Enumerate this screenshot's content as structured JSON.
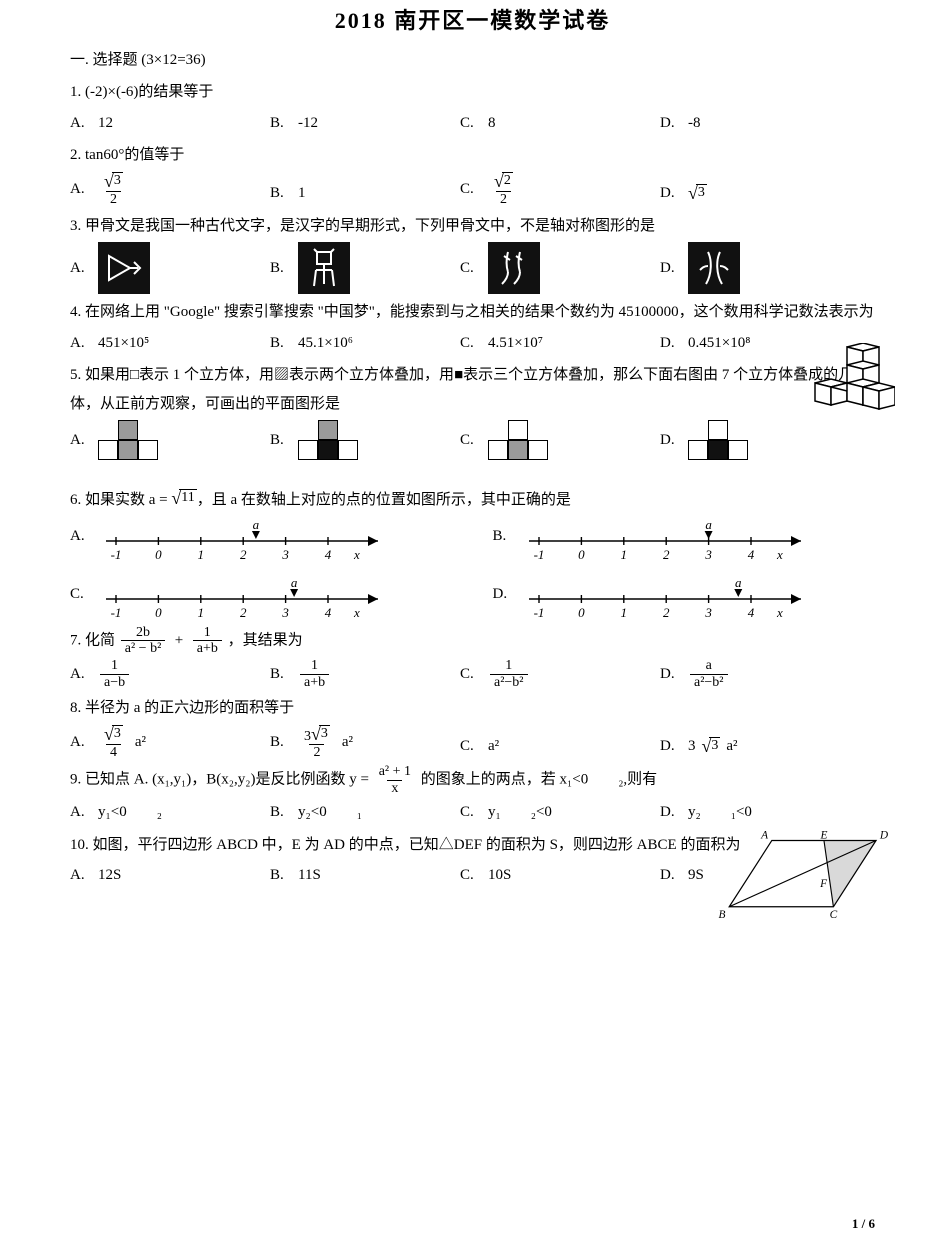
{
  "colors": {
    "bg": "#ffffff",
    "text": "#000000",
    "glyphBg": "#111111",
    "glyphFg": "#ffffff",
    "line": "#000000",
    "gray": "#9a9a9a",
    "black": "#111111"
  },
  "pageNum": "1 / 6",
  "title": "2018 南开区一模数学试卷",
  "sectionHead": "一. 选择题 (3×12=36)",
  "q1": {
    "text": "1. (-2)×(-6)的结果等于",
    "a": "12",
    "b": "-12",
    "c": "8",
    "d": "-8"
  },
  "q2": {
    "text": "2. tan60°的值等于",
    "a": {
      "type": "frac",
      "num_sqrt": "3",
      "den": "2"
    },
    "b": "1",
    "c": {
      "type": "frac",
      "num_sqrt": "2",
      "den": "2"
    },
    "d": {
      "type": "sqrt",
      "radicand": "3"
    }
  },
  "q3": {
    "text": "3. 甲骨文是我国一种古代文字，是汉字的早期形式，下列甲骨文中，不是轴对称图形的是",
    "captions": {
      "a": "射",
      "b": "曲",
      "c": "比",
      "d": "北"
    }
  },
  "q4": {
    "text": "4. 在网络上用 \"Google\" 搜索引擎搜索 \"中国梦\"，能搜索到与之相关的结果个数约为 45100000，这个数用科学记数法表示为",
    "a": "451×10⁵",
    "b": "45.1×10⁶",
    "c": "4.51×10⁷",
    "d": "0.451×10⁸"
  },
  "q5": {
    "text": "5. 如果用□表示 1 个立方体，用▨表示两个立方体叠加，用■表示三个立方体叠加，那么下面右图由 7 个立方体叠成的几何体，从正前方观察，可画出的平面图形是",
    "cross": {
      "a": {
        "top": "gray",
        "bottom": [
          "white",
          "gray",
          "white"
        ]
      },
      "b": {
        "top": "gray",
        "bottom": [
          "white",
          "black",
          "white"
        ]
      },
      "c": {
        "top": "white",
        "bottom": [
          "white",
          "gray",
          "white"
        ]
      },
      "d": {
        "top": "white",
        "bottom": [
          "white",
          "black",
          "white"
        ]
      }
    }
  },
  "q6": {
    "text": "6. 如果实数 a = √11，且 a 在数轴上对应的点的位置如图所示，其中正确的是",
    "ticks": [
      "-1",
      "0",
      "1",
      "2",
      "3",
      "4"
    ],
    "xlabel": "x",
    "pointer_label": "a",
    "pointer_x": {
      "a": 2.3,
      "b": 3.0,
      "c": 3.2,
      "d": 3.7
    }
  },
  "q7": {
    "text_prefix": "7. 化简",
    "expr": {
      "left_num": "2b",
      "left_den": "a² − b²",
      "right_num": "1",
      "right_den": "a+b"
    },
    "text_suffix": "，其结果为",
    "a": {
      "num": "1",
      "den": "a−b"
    },
    "b": {
      "num": "1",
      "den": "a+b"
    },
    "c": {
      "num": "1",
      "den": "a²−b²"
    },
    "d": {
      "num": "a",
      "den": "a²−b²"
    }
  },
  "q8": {
    "text": "8. 半径为 a 的正六边形的面积等于",
    "a": {
      "num_sqrt": "3",
      "den": "4",
      "suffix": " a²"
    },
    "b": {
      "num_pre": "3",
      "num_sqrt": "3",
      "den": "2",
      "suffix": " a²"
    },
    "c": "a²",
    "d": {
      "pre": "3",
      "sqrt": "3",
      "suffix": "a²"
    }
  },
  "q9": {
    "text_prefix": "9. 已知点 A. (x₁,y₁)，B(x₂,y₂)是反比例函数 y = ",
    "func": {
      "num": "a² + 1",
      "den": "x"
    },
    "text_suffix": " 的图象上的两点，若 x₁<0  ₂,则有",
    "a": "y₁<0  ₂",
    "b": "y₂<0  ₁",
    "c": "y₁  ₂<0",
    "d": "y₂  ₁<0"
  },
  "q10": {
    "text": "10. 如图，平行四边形 ABCD 中，E 为 AD 的中点，已知△DEF 的面积为 S，则四边形 ABCE 的面积为",
    "a": "12S",
    "b": "11S",
    "c": "10S",
    "d": "9S",
    "labels": {
      "A": "A",
      "E": "E",
      "D": "D",
      "B": "B",
      "C": "C",
      "F": "F"
    },
    "coords": {
      "A": [
        55,
        10
      ],
      "E": [
        110,
        10
      ],
      "D": [
        165,
        10
      ],
      "B": [
        10,
        80
      ],
      "C": [
        120,
        80
      ],
      "F": [
        100,
        55
      ]
    }
  }
}
